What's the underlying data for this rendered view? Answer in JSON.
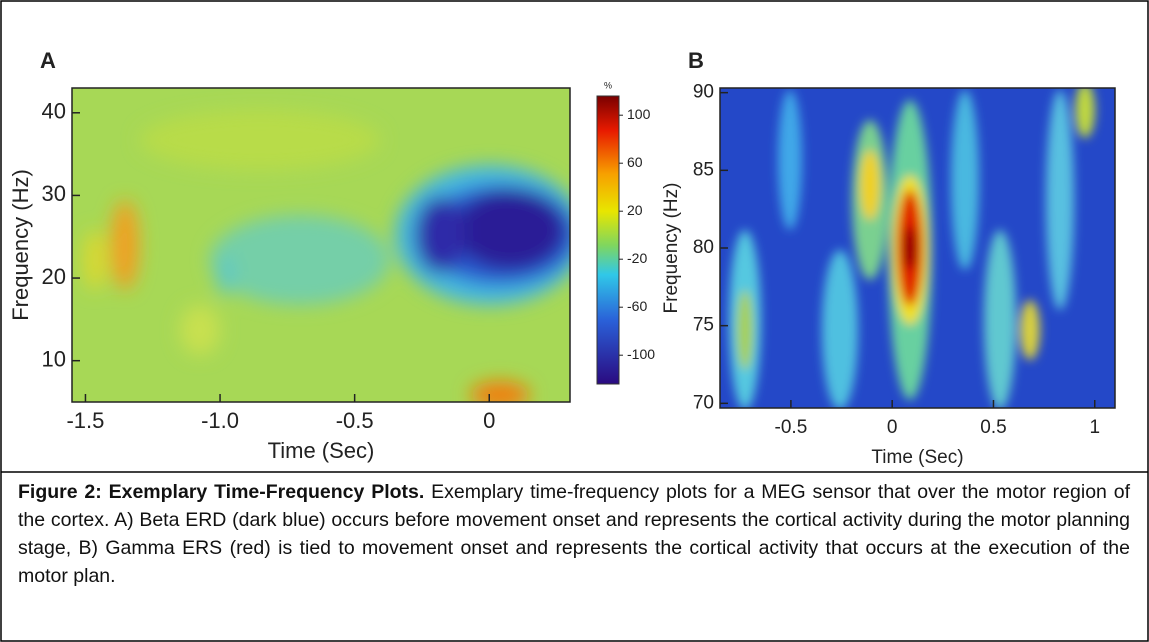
{
  "chart_data": [
    {
      "type": "heatmap",
      "panel_label": "A",
      "x_label": "Time (Sec)",
      "y_label": "Frequency (Hz)",
      "xlim": [
        -1.55,
        0.3
      ],
      "xticks": [
        -1.5,
        {
          "value": -1,
          "label": "-1.0"
        },
        -0.5,
        0
      ],
      "ylim": [
        5,
        43
      ],
      "yticks": [
        10,
        20,
        30,
        40
      ],
      "colorbar_label": "%",
      "clim": [
        -124,
        116
      ],
      "cticks": [
        100,
        60,
        20,
        -20,
        -60,
        -100
      ]
    },
    {
      "type": "heatmap",
      "panel_label": "B",
      "x_label": "Time (Sec)",
      "y_label": "Frequency (Hz)",
      "xlim": [
        -0.85,
        1.1
      ],
      "xticks": [
        -0.5,
        0,
        0.5,
        1
      ],
      "ylim": [
        69.7,
        90.3
      ],
      "yticks": [
        70,
        75,
        80,
        85,
        90
      ]
    }
  ],
  "caption": {
    "title": "Figure 2: Exemplary Time-Frequency Plots.",
    "text": "Exemplary time-frequency plots for a MEG sensor that over the motor region of the cortex. A) Beta ERD (dark blue) occurs before movement onset and represents the cortical activity during the motor planning stage, B) Gamma ERS (red) is tied to movement onset and represents the cortical activity that occurs at the execution of the motor plan."
  }
}
